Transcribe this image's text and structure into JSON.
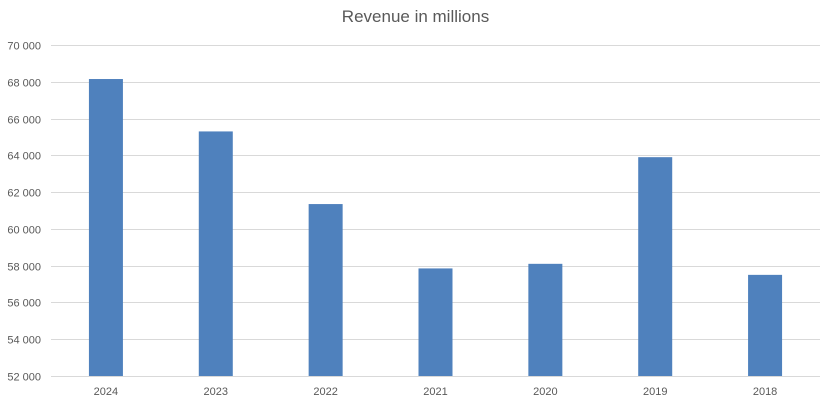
{
  "chart_data": {
    "type": "bar",
    "title": "Revenue in millions",
    "categories": [
      "2024",
      "2023",
      "2022",
      "2021",
      "2020",
      "2019",
      "2018"
    ],
    "values": [
      68150,
      65300,
      61350,
      57850,
      58100,
      63900,
      57500
    ],
    "ylim": [
      52000,
      70000
    ],
    "yticks": [
      52000,
      54000,
      56000,
      58000,
      60000,
      62000,
      64000,
      66000,
      68000,
      70000
    ],
    "ytick_labels": [
      "52 000",
      "54 000",
      "56 000",
      "58 000",
      "60 000",
      "62 000",
      "64 000",
      "66 000",
      "68 000",
      "70 000"
    ],
    "grid": true,
    "legend": "none",
    "bar_color": "#4f81bd",
    "grid_color": "#d9d9d9",
    "text_color": "#595959"
  }
}
